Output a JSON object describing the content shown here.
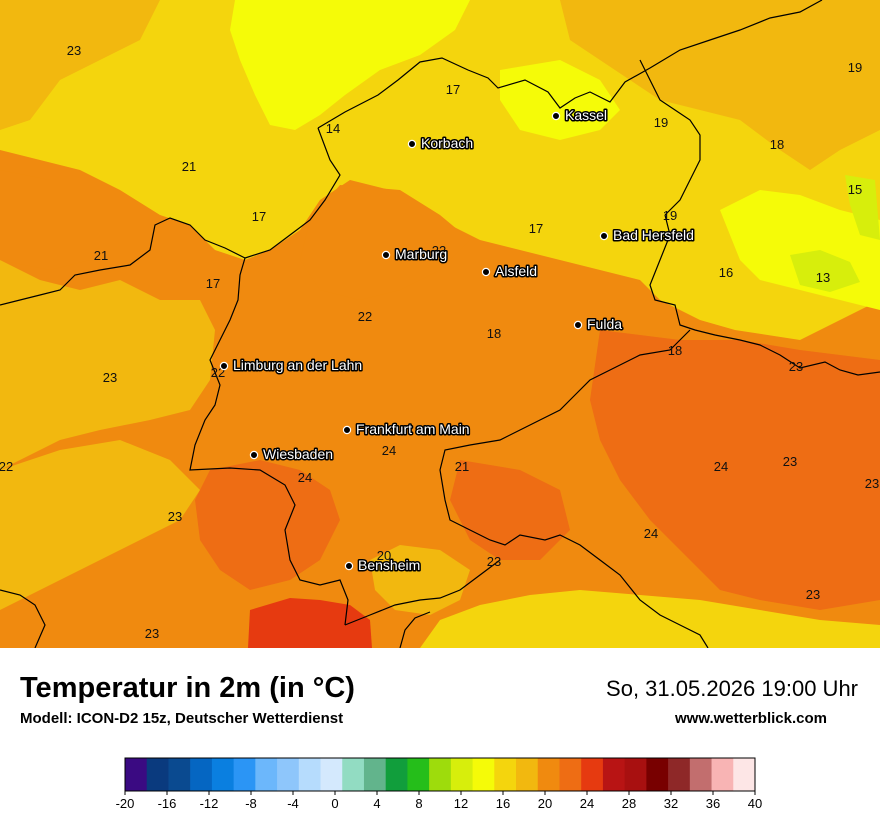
{
  "cities": [
    {
      "name": "Kassel"
    },
    {
      "name": "Korbach"
    },
    {
      "name": "Bad Hersfeld"
    },
    {
      "name": "Marburg"
    },
    {
      "name": "Alsfeld"
    },
    {
      "name": "Fulda"
    },
    {
      "name": "Limburg an der Lahn"
    },
    {
      "name": "Frankfurt am Main"
    },
    {
      "name": "Wiesbaden"
    },
    {
      "name": "Bensheim"
    }
  ],
  "temperature_labels": [
    "23",
    "17",
    "19",
    "14",
    "19",
    "18",
    "21",
    "17",
    "19",
    "15",
    "21",
    "22",
    "17",
    "16",
    "13",
    "17",
    "22",
    "18",
    "18",
    "23",
    "23",
    "22",
    "24",
    "21",
    "24",
    "23",
    "22",
    "24",
    "23",
    "23",
    "24",
    "20",
    "23",
    "23",
    "23"
  ],
  "header": {
    "title": "Temperatur in 2m (in °C)",
    "model": "Modell: ICON-D2 15z, Deutscher Wetterdienst",
    "datetime": "So, 31.05.2026 19:00 Uhr",
    "website": "www.wetterblick.com"
  },
  "legend": {
    "colors": [
      "#3a0a82",
      "#0a3a7e",
      "#0a4a90",
      "#0566c2",
      "#0a7fe0",
      "#2b95f5",
      "#6cb7fb",
      "#8ec6fb",
      "#b6dcfd",
      "#d4e9fd",
      "#92dcc2",
      "#62b48c",
      "#119e3c",
      "#25be1a",
      "#9edc0c",
      "#d7ee0c",
      "#f5fb08",
      "#f4d50d",
      "#f2b80f",
      "#f08a0f",
      "#ee6d14",
      "#e63a10",
      "#b81414",
      "#a81010",
      "#780000",
      "#8e2828",
      "#c26e6e",
      "#f8b4b4",
      "#fde6e6"
    ],
    "tick_labels": [
      "-20",
      "-16",
      "-12",
      "-8",
      "-4",
      "0",
      "4",
      "8",
      "12",
      "16",
      "20",
      "24",
      "28",
      "32",
      "36",
      "40"
    ]
  },
  "colors": {
    "t13": "#d7ee0c",
    "t14": "#f5fb08",
    "t17": "#f4d50d",
    "t19": "#f2b80f",
    "t22": "#f08a0f",
    "t24": "#ee6d14",
    "t26": "#e63a10"
  }
}
